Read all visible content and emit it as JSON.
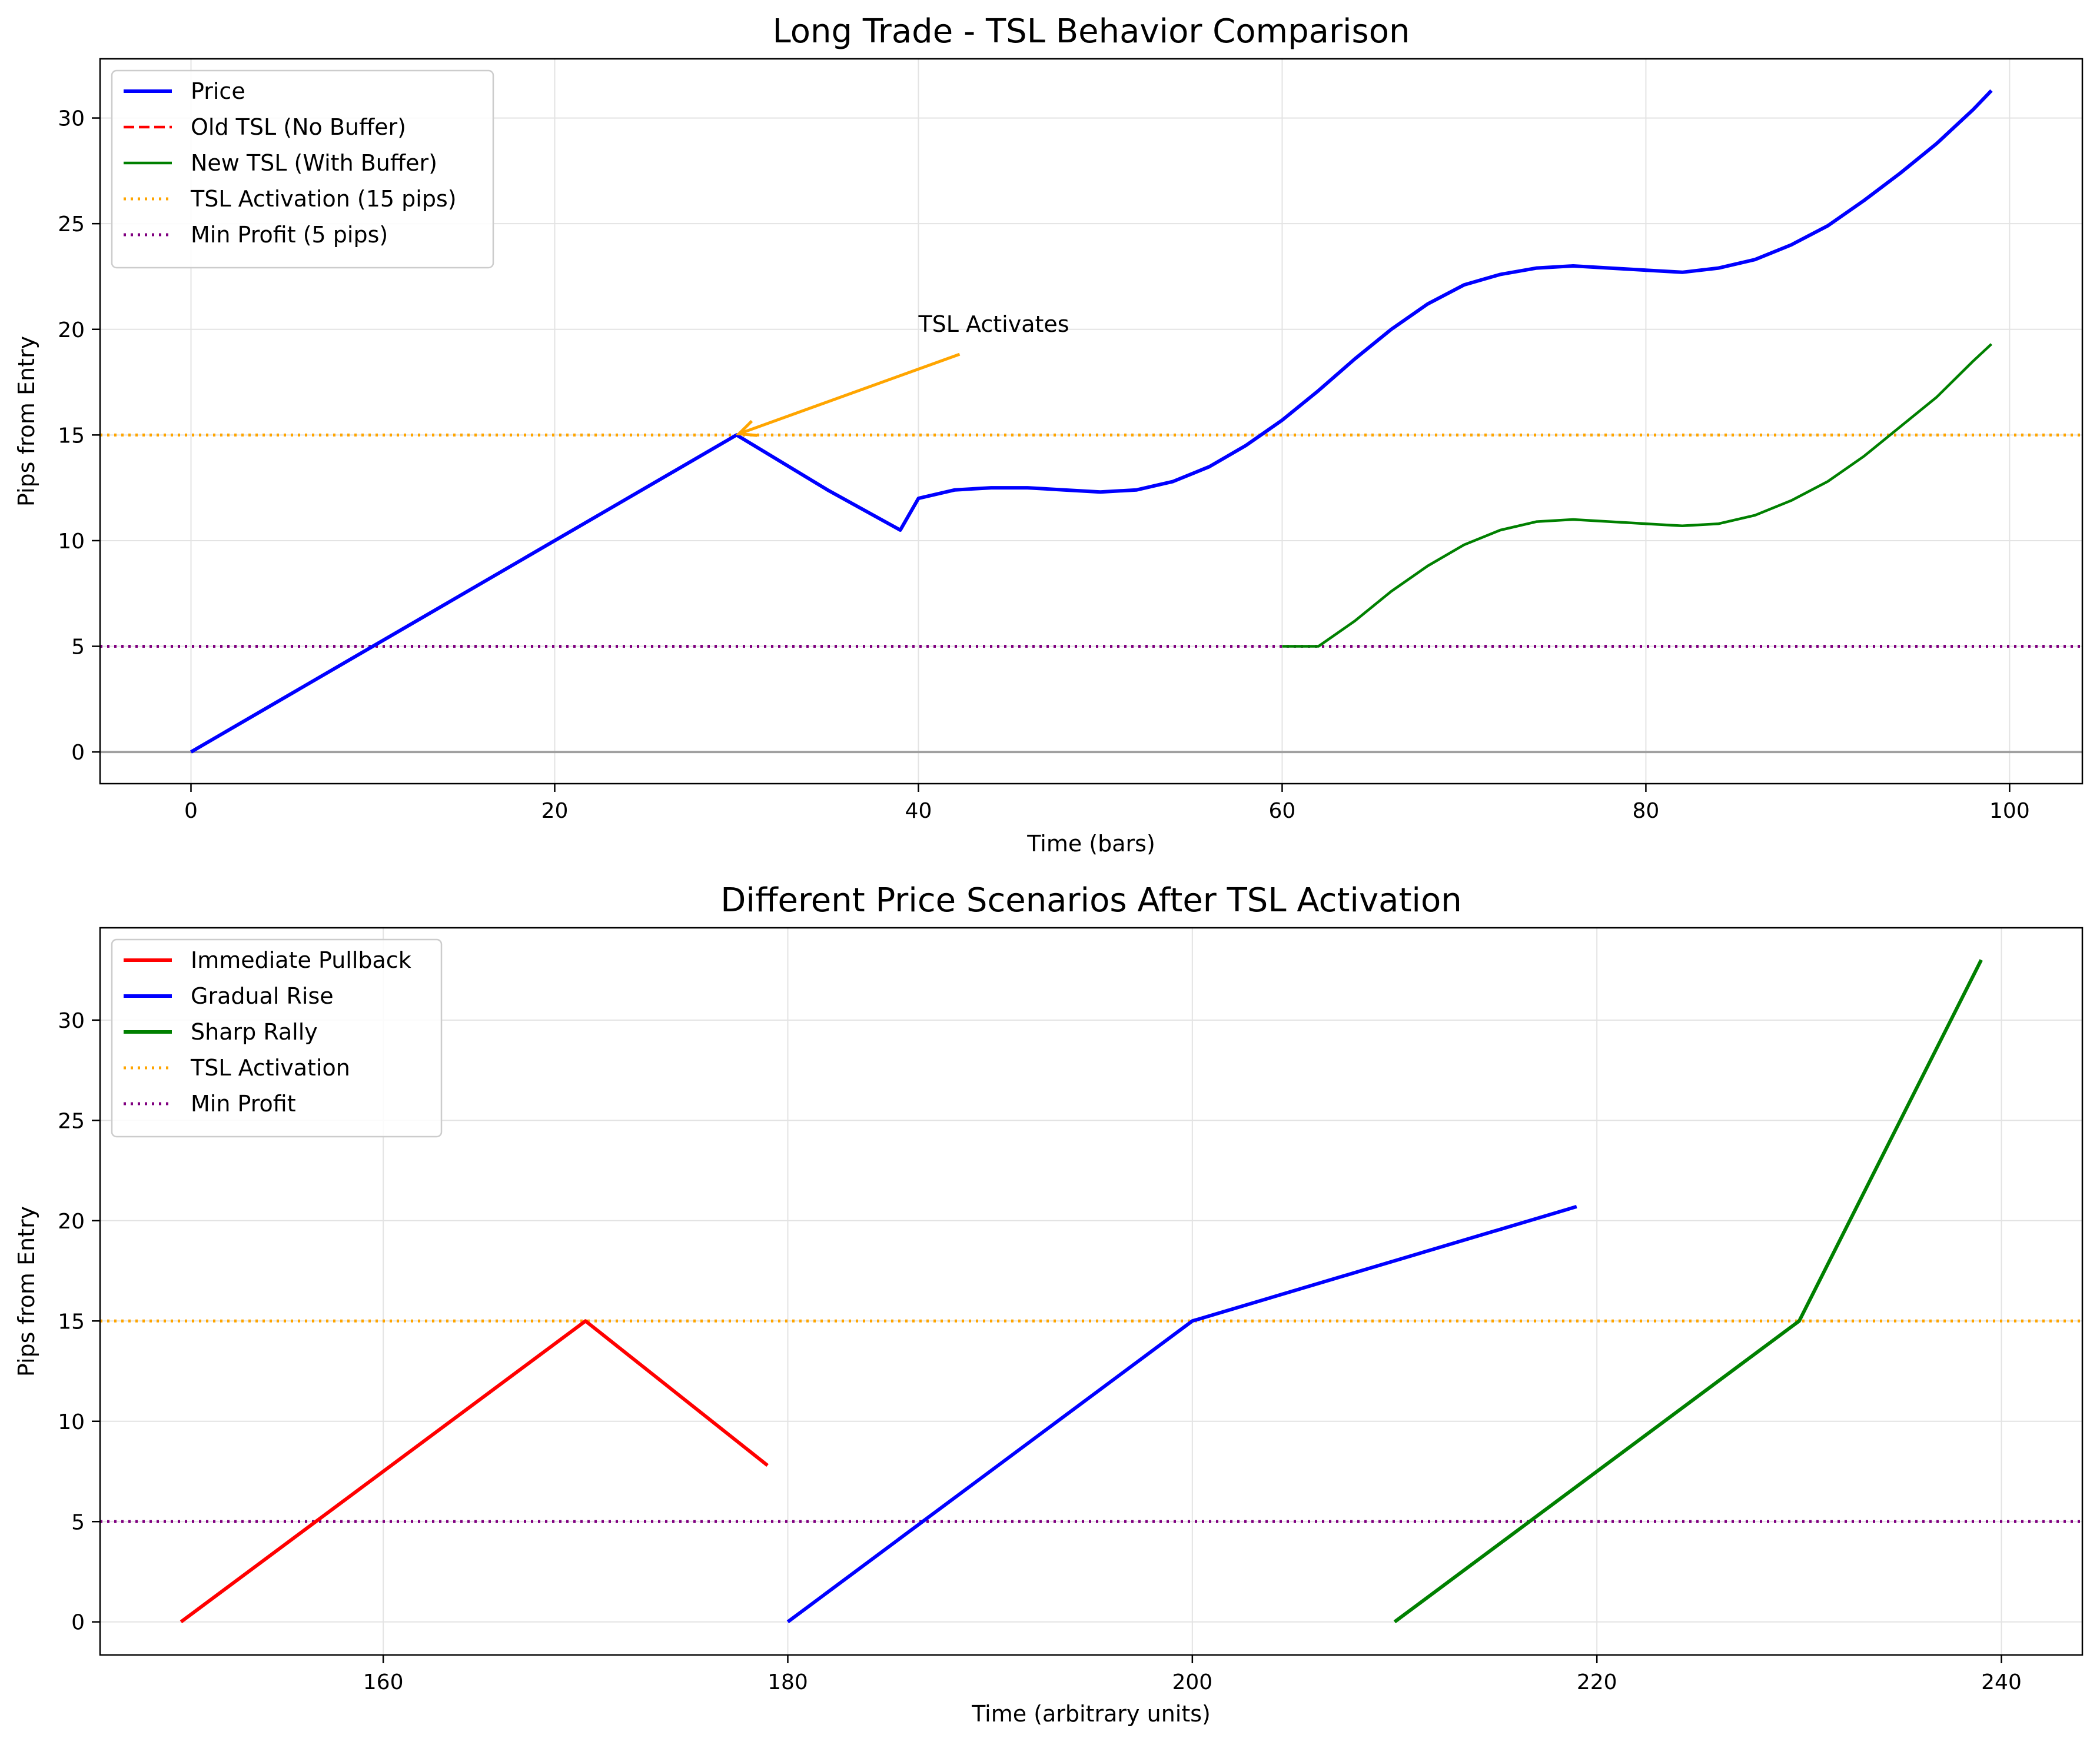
{
  "chart_data": [
    {
      "type": "line",
      "title": "Long Trade - TSL Behavior Comparison",
      "xlabel": "Time (bars)",
      "ylabel": "Pips from Entry",
      "xlim": [
        -5,
        104
      ],
      "ylim": [
        -1.5,
        32.8
      ],
      "xticks": [
        0,
        20,
        40,
        60,
        80,
        100
      ],
      "yticks": [
        0,
        5,
        10,
        15,
        20,
        25,
        30
      ],
      "grid": true,
      "legend": "top-left",
      "series": [
        {
          "name": "Price",
          "color": "#0000ff",
          "style": "solid",
          "width": 6,
          "x": [
            0,
            10,
            20,
            30,
            35,
            39,
            40,
            42,
            44,
            46,
            48,
            50,
            52,
            54,
            56,
            58,
            60,
            62,
            64,
            66,
            68,
            70,
            72,
            74,
            76,
            78,
            80,
            82,
            84,
            86,
            88,
            90,
            92,
            94,
            96,
            98,
            99
          ],
          "y": [
            0,
            5,
            10,
            15,
            12.4,
            10.5,
            12,
            12.4,
            12.5,
            12.5,
            12.4,
            12.3,
            12.4,
            12.8,
            13.5,
            14.5,
            15.7,
            17.1,
            18.6,
            20,
            21.2,
            22.1,
            22.6,
            22.9,
            23,
            22.9,
            22.8,
            22.7,
            22.9,
            23.3,
            24,
            24.9,
            26.1,
            27.4,
            28.8,
            30.4,
            31.3
          ]
        },
        {
          "name": "Old TSL (No Buffer)",
          "color": "#ff0000",
          "style": "dashed",
          "width": 4.5,
          "x": [],
          "y": []
        },
        {
          "name": "New TSL (With Buffer)",
          "color": "#008000",
          "style": "solid",
          "width": 4.5,
          "x": [
            60,
            62,
            64,
            66,
            68,
            70,
            72,
            74,
            76,
            78,
            80,
            82,
            84,
            86,
            88,
            90,
            92,
            94,
            96,
            98,
            99
          ],
          "y": [
            5,
            5,
            6.2,
            7.6,
            8.8,
            9.8,
            10.5,
            10.9,
            11,
            10.9,
            10.8,
            10.7,
            10.8,
            11.2,
            11.9,
            12.8,
            14,
            15.4,
            16.8,
            18.5,
            19.3
          ]
        }
      ],
      "hlines": [
        {
          "name": "TSL Activation (15 pips)",
          "y": 15,
          "color": "#ffa500",
          "style": "dotted",
          "in_legend": true
        },
        {
          "name": "Min Profit (5 pips)",
          "y": 5,
          "color": "#800080",
          "style": "dotted",
          "in_legend": true
        },
        {
          "name": "",
          "y": 0,
          "color": "#a0a0a0",
          "style": "solid",
          "in_legend": false
        }
      ],
      "annotations": [
        {
          "text": "TSL Activates",
          "xy": [
            30,
            15
          ],
          "xytext": [
            40,
            19.6
          ],
          "color": "#ffa500"
        }
      ]
    },
    {
      "type": "line",
      "title": "Different Price Scenarios After TSL Activation",
      "xlabel": "Time (arbitrary units)",
      "ylabel": "Pips from Entry",
      "xlim": [
        146,
        244
      ],
      "ylim": [
        -1.65,
        34.6
      ],
      "xticks": [
        160,
        180,
        200,
        220,
        240
      ],
      "yticks": [
        0,
        5,
        10,
        15,
        20,
        25,
        30
      ],
      "grid": true,
      "legend": "top-left",
      "series": [
        {
          "name": "Immediate Pullback",
          "color": "#ff0000",
          "style": "solid",
          "width": 6,
          "x": [
            150,
            170,
            179
          ],
          "y": [
            0,
            15,
            7.8
          ]
        },
        {
          "name": "Gradual Rise",
          "color": "#0000ff",
          "style": "solid",
          "width": 6,
          "x": [
            180,
            200,
            219
          ],
          "y": [
            0,
            15,
            20.7
          ]
        },
        {
          "name": "Sharp Rally",
          "color": "#008000",
          "style": "solid",
          "width": 6,
          "x": [
            210,
            230,
            239
          ],
          "y": [
            0,
            15,
            33
          ]
        }
      ],
      "hlines": [
        {
          "name": "TSL Activation",
          "y": 15,
          "color": "#ffa500",
          "style": "dotted",
          "in_legend": true
        },
        {
          "name": "Min Profit",
          "y": 5,
          "color": "#800080",
          "style": "dotted",
          "in_legend": true
        }
      ],
      "annotations": []
    }
  ]
}
